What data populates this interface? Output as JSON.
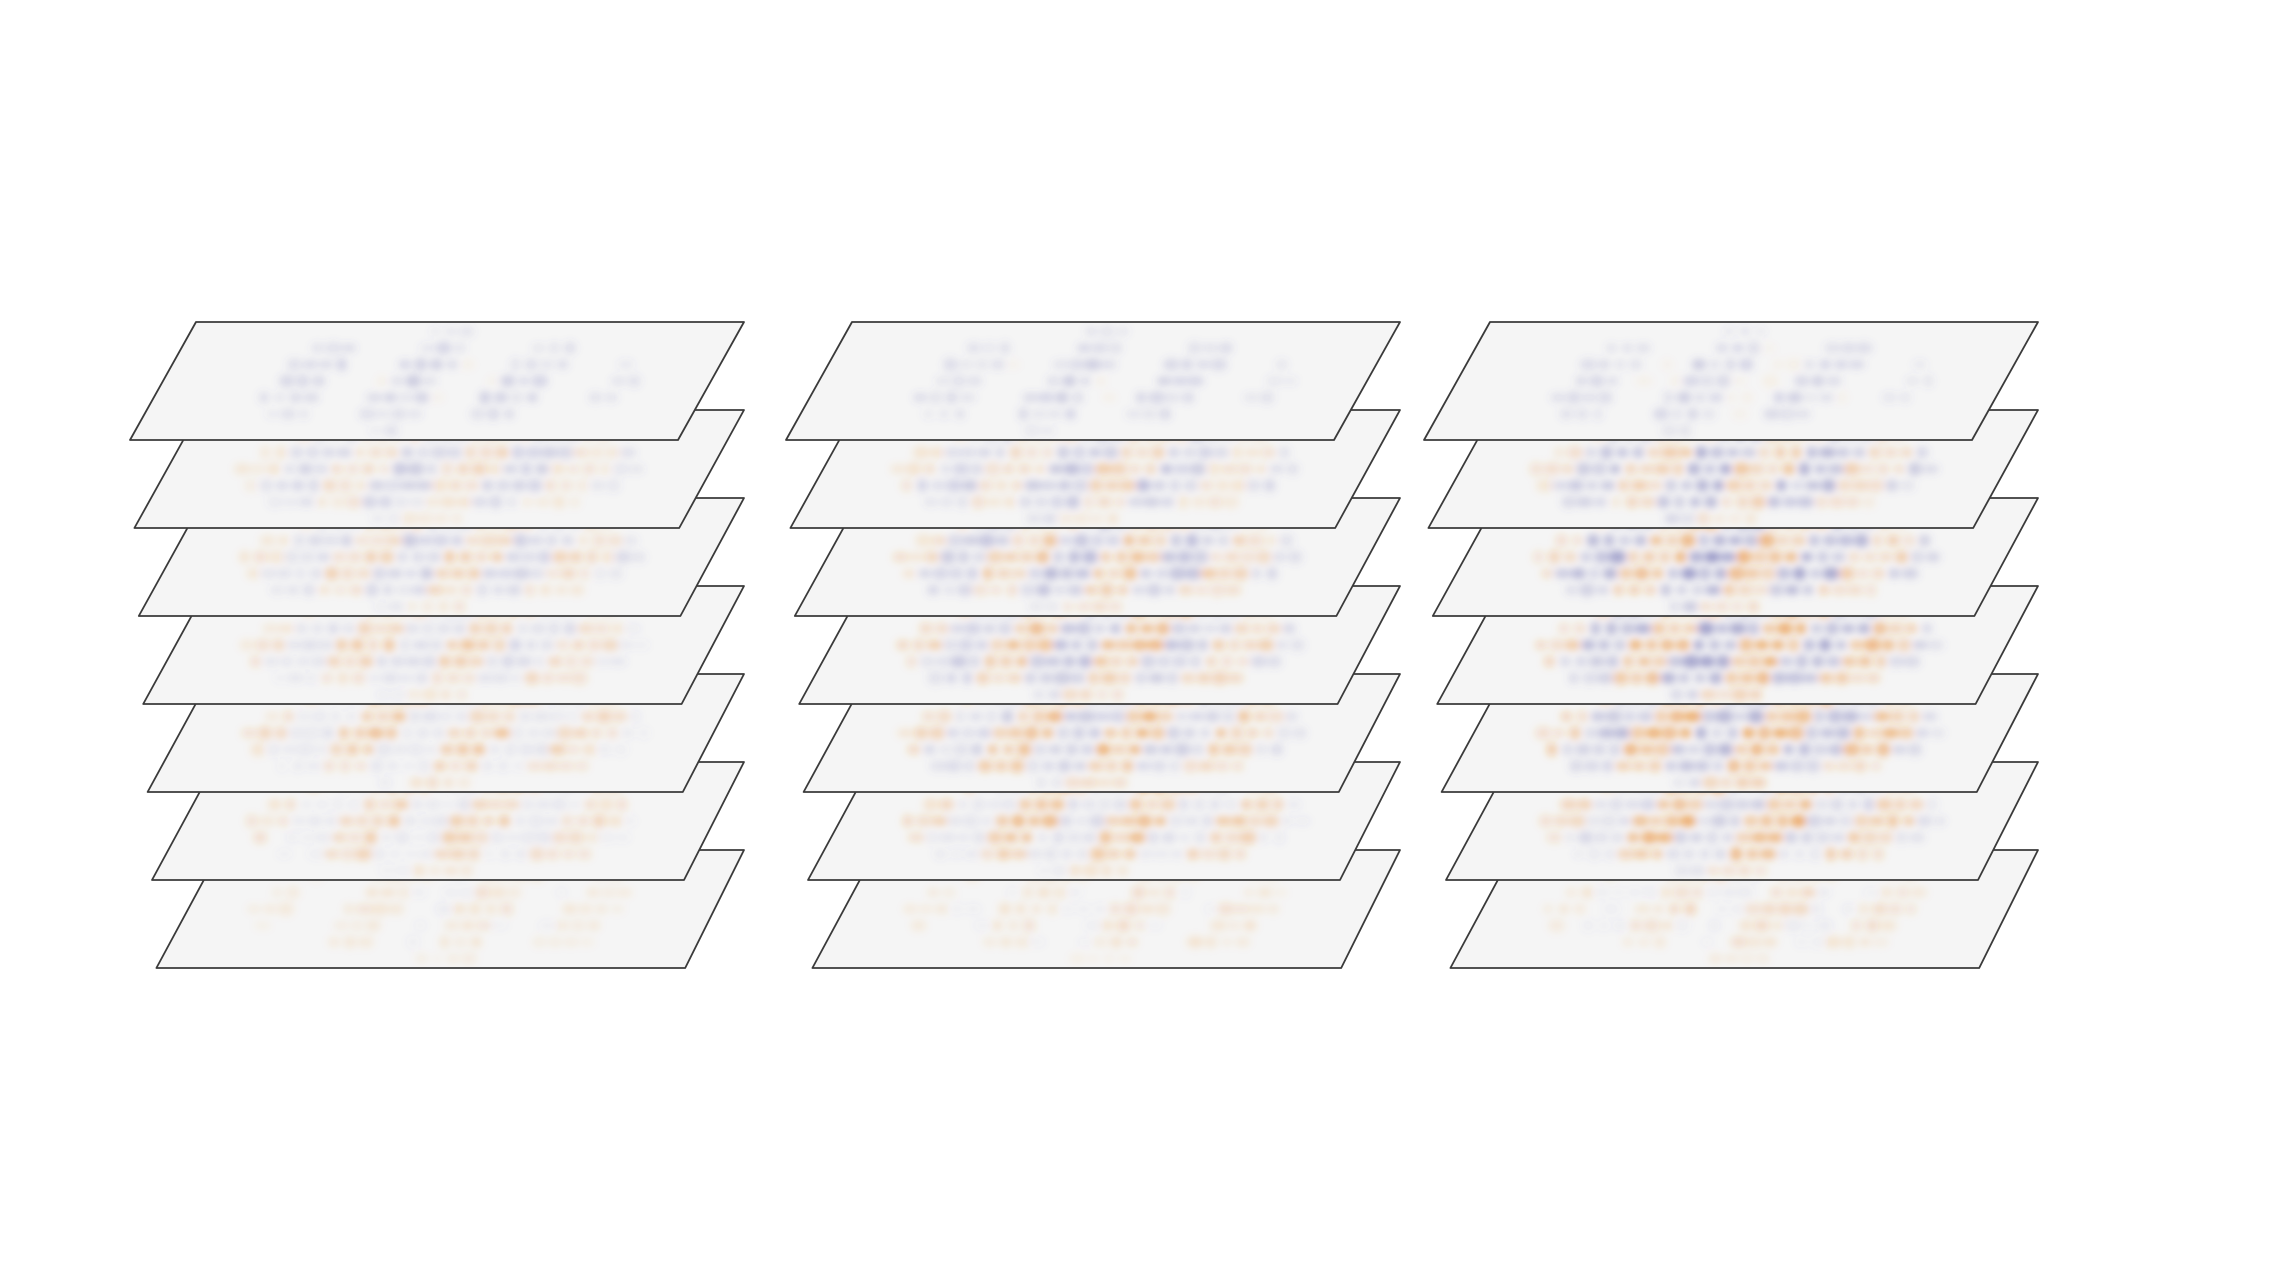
{
  "figure": {
    "stacks": [
      {
        "id": "stack-1",
        "slices": [
          {
            "blue": 0.28,
            "orange": 0.05
          },
          {
            "blue": 0.32,
            "orange": 0.3
          },
          {
            "blue": 0.3,
            "orange": 0.4
          },
          {
            "blue": 0.22,
            "orange": 0.45
          },
          {
            "blue": 0.15,
            "orange": 0.5
          },
          {
            "blue": 0.12,
            "orange": 0.42
          },
          {
            "blue": 0.06,
            "orange": 0.2
          }
        ]
      },
      {
        "id": "stack-2",
        "slices": [
          {
            "blue": 0.3,
            "orange": 0.05
          },
          {
            "blue": 0.4,
            "orange": 0.35
          },
          {
            "blue": 0.45,
            "orange": 0.5
          },
          {
            "blue": 0.42,
            "orange": 0.6
          },
          {
            "blue": 0.35,
            "orange": 0.65
          },
          {
            "blue": 0.2,
            "orange": 0.6
          },
          {
            "blue": 0.06,
            "orange": 0.25
          }
        ]
      },
      {
        "id": "stack-3",
        "slices": [
          {
            "blue": 0.3,
            "orange": 0.06
          },
          {
            "blue": 0.55,
            "orange": 0.45
          },
          {
            "blue": 0.65,
            "orange": 0.6
          },
          {
            "blue": 0.62,
            "orange": 0.72
          },
          {
            "blue": 0.5,
            "orange": 0.8
          },
          {
            "blue": 0.3,
            "orange": 0.7
          },
          {
            "blue": 0.08,
            "orange": 0.3
          }
        ]
      }
    ],
    "colors": {
      "positive": "#e8821e",
      "negative": "#5a5aa8",
      "plane": "#f5f5f5",
      "edge": "#3a3a3a"
    }
  }
}
